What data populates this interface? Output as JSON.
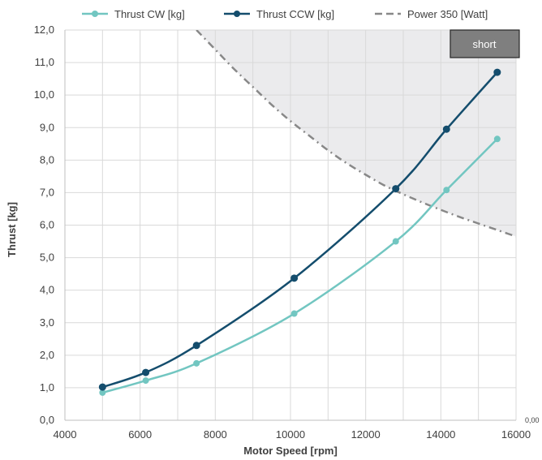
{
  "chart_data": {
    "type": "line",
    "xlabel": "Motor Speed [rpm]",
    "ylabel": "Thrust [kg]",
    "xlim": [
      4000,
      16000
    ],
    "ylim": [
      0,
      12
    ],
    "x_ticks": [
      "4000",
      "6000",
      "8000",
      "10000",
      "12000",
      "14000",
      "16000"
    ],
    "y_ticks": [
      "0,0",
      "1,0",
      "2,0",
      "3,0",
      "4,0",
      "5,0",
      "6,0",
      "7,0",
      "8,0",
      "9,0",
      "10,0",
      "11,0",
      "12,0"
    ],
    "grid": true,
    "legend_position": "top",
    "series": [
      {
        "name": "Thrust CW [kg]",
        "color": "#72c6c1",
        "x": [
          5000,
          6150,
          7500,
          10100,
          12800,
          14150,
          15500
        ],
        "y": [
          0.85,
          1.22,
          1.75,
          3.28,
          5.5,
          7.08,
          8.65
        ]
      },
      {
        "name": "Thrust CCW [kg]",
        "color": "#144d6d",
        "x": [
          5000,
          6150,
          7500,
          10100,
          12800,
          14150,
          15500
        ],
        "y": [
          1.02,
          1.47,
          2.3,
          4.37,
          7.12,
          8.95,
          10.7
        ]
      }
    ],
    "power_curve": {
      "name": "Power  350 [Watt]",
      "color": "#888888",
      "x": [
        7500,
        8000,
        8500,
        9000,
        9500,
        10000,
        10500,
        11000,
        11500,
        12000,
        12500,
        13000,
        13500,
        14000,
        14500,
        15000,
        15500,
        16000
      ],
      "y": [
        12.0,
        11.4,
        10.8,
        10.25,
        9.7,
        9.2,
        8.75,
        8.3,
        7.9,
        7.55,
        7.22,
        6.95,
        6.7,
        6.47,
        6.25,
        6.05,
        5.85,
        5.65
      ]
    },
    "button_label": "short",
    "corner_label": "0,00"
  }
}
